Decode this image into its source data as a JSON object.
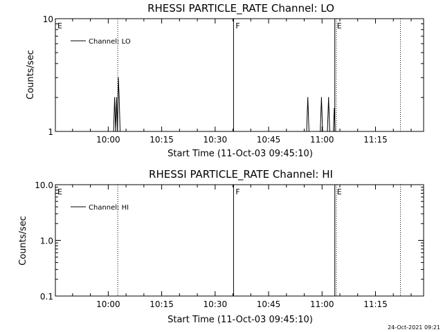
{
  "chart_data": [
    {
      "type": "line",
      "title": "RHESSI PARTICLE_RATE Channel: LO",
      "xlabel": "Start Time (11-Oct-03 09:45:10)",
      "ylabel": "Counts/sec",
      "yscale": "log",
      "ylim": [
        1,
        10
      ],
      "xlim": [
        "09:45:10",
        "11:28:30"
      ],
      "x_ticks": [
        "10:00",
        "10:15",
        "10:30",
        "10:45",
        "11:00",
        "11:15"
      ],
      "y_ticks": [
        "1",
        "10"
      ],
      "grid": false,
      "legend_position": "top-left",
      "series": [
        {
          "name": "Channel: LO",
          "points": [
            [
              "10:01:30",
              1
            ],
            [
              "10:01:48",
              2
            ],
            [
              "10:02:05",
              1
            ],
            [
              "10:02:20",
              2
            ],
            [
              "10:02:35",
              1
            ],
            [
              "10:02:50",
              3
            ],
            [
              "10:03:05",
              2
            ],
            [
              "10:03:20",
              1
            ],
            [
              "10:55:40",
              1
            ],
            [
              "10:56:00",
              2
            ],
            [
              "10:56:20",
              1
            ],
            [
              "10:59:30",
              1
            ],
            [
              "10:59:50",
              2
            ],
            [
              "11:00:10",
              1
            ],
            [
              "11:01:30",
              1
            ],
            [
              "11:01:50",
              2
            ],
            [
              "11:02:10",
              1
            ],
            [
              "11:03:10",
              1
            ],
            [
              "11:03:25",
              1.6
            ],
            [
              "11:03:40",
              1
            ]
          ]
        }
      ],
      "markers": [
        {
          "time": "09:45:10",
          "label": "E",
          "style": "none"
        },
        {
          "time": "10:02:40",
          "label": "",
          "style": "dotted"
        },
        {
          "time": "10:35:10",
          "label": "F",
          "style": "solid"
        },
        {
          "time": "11:03:35",
          "label": "E",
          "style": "solid"
        },
        {
          "time": "11:04:00",
          "label": "",
          "style": "dotted"
        },
        {
          "time": "11:22:00",
          "label": "",
          "style": "dotted"
        }
      ]
    },
    {
      "type": "line",
      "title": "RHESSI PARTICLE_RATE Channel: HI",
      "xlabel": "Start Time (11-Oct-03 09:45:10)",
      "ylabel": "Counts/sec",
      "yscale": "log",
      "ylim": [
        0.1,
        10
      ],
      "xlim": [
        "09:45:10",
        "11:28:30"
      ],
      "x_ticks": [
        "10:00",
        "10:15",
        "10:30",
        "10:45",
        "11:00",
        "11:15"
      ],
      "y_ticks": [
        "0.1",
        "1.0",
        "10.0"
      ],
      "grid": false,
      "legend_position": "top-left",
      "series": [
        {
          "name": "Channel: HI",
          "points": []
        }
      ],
      "markers": [
        {
          "time": "09:45:10",
          "label": "E",
          "style": "none"
        },
        {
          "time": "10:02:40",
          "label": "",
          "style": "dotted"
        },
        {
          "time": "10:35:10",
          "label": "F",
          "style": "solid"
        },
        {
          "time": "11:03:35",
          "label": "E",
          "style": "solid"
        },
        {
          "time": "11:04:00",
          "label": "",
          "style": "dotted"
        },
        {
          "time": "11:22:00",
          "label": "",
          "style": "dotted"
        }
      ]
    }
  ],
  "footer": {
    "timestamp": "24-Oct-2021 09:21"
  }
}
